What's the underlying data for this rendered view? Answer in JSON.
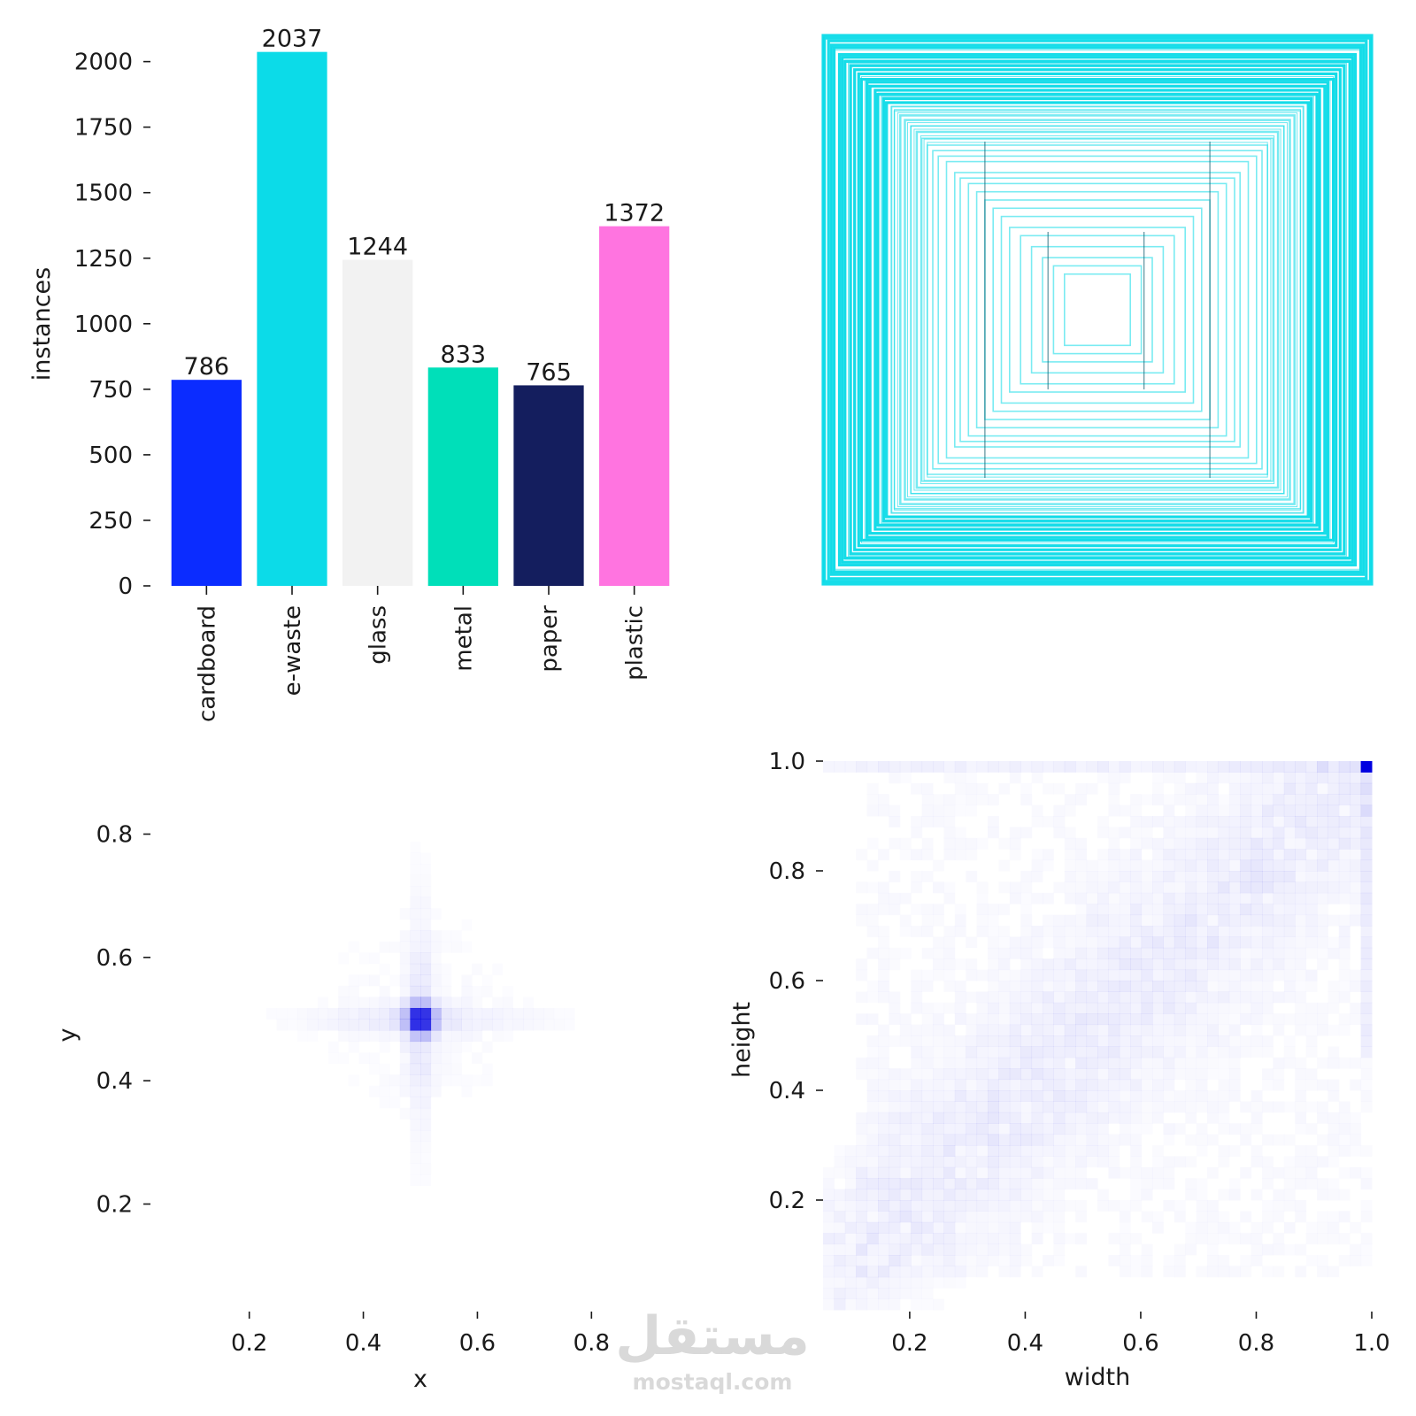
{
  "chart_data": [
    {
      "type": "bar",
      "panel": "class-counts",
      "categories": [
        "cardboard",
        "e-waste",
        "glass",
        "metal",
        "paper",
        "plastic"
      ],
      "values": [
        786,
        2037,
        1244,
        833,
        765,
        1372
      ],
      "value_labels": [
        "786",
        "2037",
        "1244",
        "833",
        "765",
        "1372"
      ],
      "colors": [
        "#0b2cff",
        "#0cdbe8",
        "#f2f2f2",
        "#00dfb9",
        "#141e5e",
        "#ff74e0"
      ],
      "xlabel": "",
      "ylabel": "instances",
      "ylim": [
        0,
        2100
      ],
      "yticks": [
        0,
        250,
        500,
        750,
        1000,
        1250,
        1500,
        1750,
        2000
      ],
      "ytick_labels": [
        "0",
        "250",
        "500",
        "750",
        "1000",
        "1250",
        "1500",
        "1750",
        "2000"
      ]
    },
    {
      "type": "other",
      "panel": "box-overlay",
      "description": "nested centered bounding-box outlines",
      "line_color": "#0cdbe8",
      "boxes_wh": [
        [
          1.0,
          1.0
        ],
        [
          0.995,
          0.99
        ],
        [
          0.98,
          0.98
        ],
        [
          0.97,
          0.965
        ],
        [
          0.96,
          0.955
        ],
        [
          0.94,
          0.93
        ],
        [
          0.93,
          0.92
        ],
        [
          0.92,
          0.905
        ],
        [
          0.9,
          0.89
        ],
        [
          0.885,
          0.875
        ],
        [
          0.87,
          0.86
        ],
        [
          0.86,
          0.84
        ],
        [
          0.84,
          0.83
        ],
        [
          0.83,
          0.815
        ],
        [
          0.81,
          0.8
        ],
        [
          0.8,
          0.785
        ],
        [
          0.78,
          0.77
        ],
        [
          0.77,
          0.755
        ],
        [
          0.75,
          0.74
        ],
        [
          0.74,
          0.725
        ],
        [
          0.72,
          0.71
        ],
        [
          0.7,
          0.69
        ],
        [
          0.68,
          0.67
        ],
        [
          0.66,
          0.65
        ],
        [
          0.64,
          0.625
        ],
        [
          0.62,
          0.6
        ],
        [
          0.6,
          0.58
        ],
        [
          0.58,
          0.56
        ],
        [
          0.55,
          0.54
        ],
        [
          0.52,
          0.5
        ],
        [
          0.5,
          0.48
        ],
        [
          0.47,
          0.46
        ],
        [
          0.44,
          0.43
        ],
        [
          0.41,
          0.4
        ],
        [
          0.38,
          0.37
        ],
        [
          0.35,
          0.34
        ],
        [
          0.32,
          0.3
        ],
        [
          0.28,
          0.27
        ],
        [
          0.24,
          0.23
        ],
        [
          0.2,
          0.19
        ],
        [
          0.16,
          0.16
        ],
        [
          0.12,
          0.13
        ]
      ],
      "dark_segments_x": [
        0.295,
        0.41,
        0.585,
        0.705
      ]
    },
    {
      "type": "heatmap",
      "panel": "center-distribution",
      "xlabel": "x",
      "ylabel": "y",
      "xlim": [
        0.05,
        0.95
      ],
      "ylim": [
        0.05,
        0.95
      ],
      "xticks": [
        0.2,
        0.4,
        0.6,
        0.8
      ],
      "xtick_labels": [
        "0.2",
        "0.4",
        "0.6",
        "0.8"
      ],
      "yticks": [
        0.2,
        0.4,
        0.6,
        0.8
      ],
      "ytick_labels": [
        "0.2",
        "0.4",
        "0.6",
        "0.8"
      ],
      "color": "#0000e0",
      "peak": {
        "x": 0.5,
        "y": 0.5,
        "density": 1.0
      },
      "grid_on": false
    },
    {
      "type": "heatmap",
      "panel": "size-distribution",
      "xlabel": "width",
      "ylabel": "height",
      "xlim": [
        0.05,
        1.0
      ],
      "ylim": [
        0.0,
        1.0
      ],
      "xticks": [
        0.2,
        0.4,
        0.6,
        0.8,
        1.0
      ],
      "xtick_labels": [
        "0.2",
        "0.4",
        "0.6",
        "0.8",
        "1.0"
      ],
      "yticks": [
        0.2,
        0.4,
        0.6,
        0.8,
        1.0
      ],
      "ytick_labels": [
        "0.2",
        "0.4",
        "0.6",
        "0.8",
        "1.0"
      ],
      "color": "#0000e0",
      "peak": {
        "x": 0.99,
        "y": 0.99,
        "density": 1.0
      },
      "grid_on": false
    }
  ],
  "watermark": {
    "arabic": "مستقل",
    "latin": "mostaql.com"
  }
}
